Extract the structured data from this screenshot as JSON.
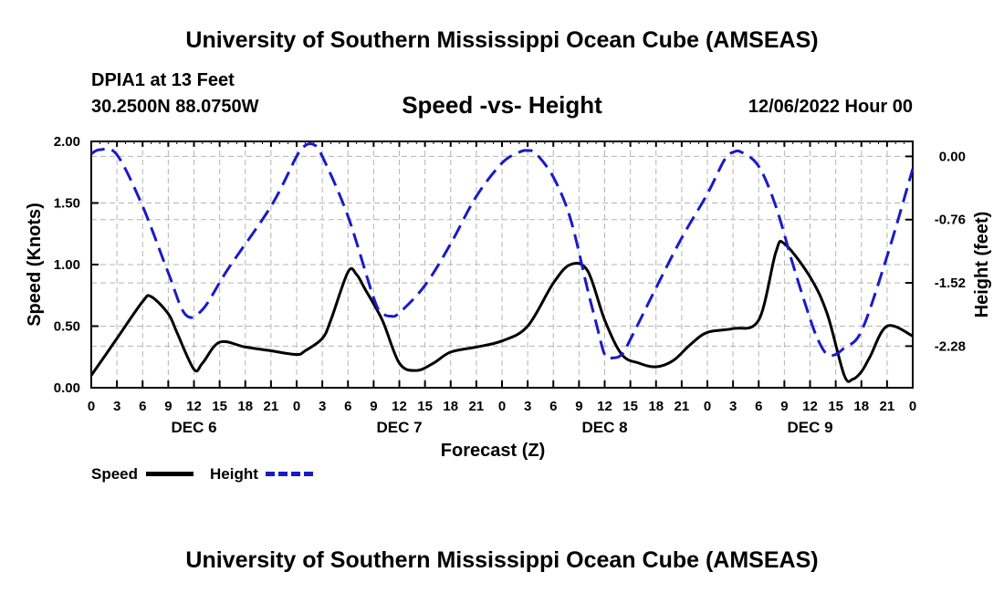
{
  "page": {
    "title": "University of Southern Mississippi Ocean Cube (AMSEAS)",
    "footer_title": "University of Southern Mississippi Ocean Cube (AMSEAS)",
    "station": "DPIA1 at 13 Feet",
    "coords": "30.2500N  88.0750W",
    "subtitle": "Speed -vs- Height",
    "run_time": "12/06/2022 Hour 00"
  },
  "colors": {
    "speed": "#000000",
    "height": "#1a1ac8",
    "grid": "#b4b4b4"
  },
  "legend": {
    "speed_label": "Speed",
    "height_label": "Height"
  },
  "chart_data": {
    "type": "line",
    "title": "Speed -vs- Height",
    "xlabel": "Forecast (Z)",
    "ylabel": "Speed (Knots)",
    "y2label": "Height (feet)",
    "xlim": [
      0,
      96
    ],
    "ylim": [
      0,
      2.0
    ],
    "y2lim": [
      -2.78,
      0.18
    ],
    "grid": true,
    "legend_position": "bottom-left",
    "x_ticks": [
      0,
      3,
      6,
      9,
      12,
      15,
      18,
      21,
      24,
      27,
      30,
      33,
      36,
      39,
      42,
      45,
      48,
      51,
      54,
      57,
      60,
      63,
      66,
      69,
      72,
      75,
      78,
      81,
      84,
      87,
      90,
      93,
      96
    ],
    "x_tick_labels": [
      "0",
      "3",
      "6",
      "9",
      "12",
      "15",
      "18",
      "21",
      "0",
      "3",
      "6",
      "9",
      "12",
      "15",
      "18",
      "21",
      "0",
      "3",
      "6",
      "9",
      "12",
      "15",
      "18",
      "21",
      "0",
      "3",
      "6",
      "9",
      "12",
      "15",
      "18",
      "21",
      "0"
    ],
    "day_labels": [
      {
        "x": 12,
        "label": "DEC 6"
      },
      {
        "x": 36,
        "label": "DEC 7"
      },
      {
        "x": 60,
        "label": "DEC 8"
      },
      {
        "x": 84,
        "label": "DEC 9"
      }
    ],
    "y_ticks": [
      0.0,
      0.5,
      1.0,
      1.5,
      2.0
    ],
    "y_tick_labels": [
      "0.00",
      "0.50",
      "1.00",
      "1.50",
      "2.00"
    ],
    "y2_ticks": [
      0.0,
      -0.76,
      -1.52,
      -2.28
    ],
    "y2_tick_labels": [
      "0.00",
      "-0.76",
      "-1.52",
      "-2.28"
    ],
    "series": [
      {
        "name": "Speed",
        "axis": "left",
        "style": "solid",
        "x": [
          0,
          3,
          6,
          7,
          9,
          10,
          12,
          13,
          15,
          18,
          21,
          24,
          25,
          27,
          28,
          30,
          31,
          32,
          34,
          36,
          38,
          40,
          42,
          45,
          48,
          51,
          54,
          56,
          58,
          60,
          62,
          64,
          66,
          68,
          70,
          72,
          75,
          78,
          80,
          81,
          84,
          86,
          88,
          89,
          90,
          91,
          93,
          96
        ],
        "y": [
          0.1,
          0.4,
          0.7,
          0.74,
          0.6,
          0.45,
          0.15,
          0.2,
          0.37,
          0.33,
          0.3,
          0.27,
          0.3,
          0.4,
          0.55,
          0.94,
          0.92,
          0.8,
          0.55,
          0.2,
          0.14,
          0.2,
          0.29,
          0.33,
          0.38,
          0.5,
          0.85,
          1.0,
          0.95,
          0.55,
          0.27,
          0.2,
          0.17,
          0.22,
          0.35,
          0.45,
          0.48,
          0.55,
          1.1,
          1.17,
          0.9,
          0.6,
          0.1,
          0.07,
          0.13,
          0.25,
          0.5,
          0.42
        ]
      },
      {
        "name": "Height",
        "axis": "right",
        "style": "dashed",
        "x": [
          0,
          1,
          3,
          6,
          9,
          11,
          13,
          16,
          21,
          24,
          25,
          26,
          27,
          30,
          33,
          34,
          35,
          36,
          39,
          42,
          45,
          48,
          50,
          51,
          52,
          54,
          56,
          58,
          59,
          60,
          61,
          62,
          63,
          66,
          69,
          72,
          74,
          75,
          76,
          78,
          80,
          82,
          84,
          85,
          86,
          87,
          88,
          90,
          93,
          96
        ],
        "y": [
          0.03,
          0.08,
          0.02,
          -0.6,
          -1.4,
          -1.9,
          -1.84,
          -1.35,
          -0.6,
          0.0,
          0.13,
          0.14,
          0.0,
          -0.72,
          -1.7,
          -1.88,
          -1.92,
          -1.88,
          -1.55,
          -1.05,
          -0.48,
          -0.08,
          0.05,
          0.07,
          0.03,
          -0.25,
          -0.75,
          -1.6,
          -2.0,
          -2.38,
          -2.42,
          -2.38,
          -2.2,
          -1.58,
          -0.98,
          -0.45,
          -0.04,
          0.05,
          0.05,
          -0.12,
          -0.6,
          -1.3,
          -1.95,
          -2.22,
          -2.38,
          -2.38,
          -2.3,
          -2.1,
          -1.2,
          -0.15
        ]
      }
    ]
  }
}
